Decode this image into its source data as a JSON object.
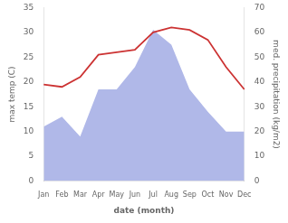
{
  "chart_data": {
    "type": "line",
    "categories": [
      "Jan",
      "Feb",
      "Mar",
      "Apr",
      "May",
      "Jun",
      "Jul",
      "Aug",
      "Sep",
      "Oct",
      "Nov",
      "Dec"
    ],
    "x_label": "date (month)",
    "y_label": "max temp (C)",
    "y2_label": "med. precipitation (kg/m2)",
    "series": [
      {
        "type": "area",
        "axis": "y2",
        "color": "#b0b8e8",
        "values": [
          22,
          26,
          18,
          37,
          37,
          46,
          61,
          55,
          37,
          28,
          20,
          20
        ]
      },
      {
        "type": "line",
        "color": "#cc3333",
        "values": [
          19.5,
          19.0,
          21.0,
          25.5,
          26.0,
          26.5,
          30.0,
          31.0,
          30.5,
          28.5,
          23.0,
          18.5
        ]
      }
    ],
    "ylim": [
      0,
      35
    ],
    "yticks": [
      0,
      5,
      10,
      15,
      20,
      25,
      30,
      35
    ],
    "y2lim": [
      0,
      70
    ],
    "y2ticks": [
      0,
      10,
      20,
      30,
      40,
      50,
      60,
      70
    ],
    "grid": false,
    "legend": false
  }
}
